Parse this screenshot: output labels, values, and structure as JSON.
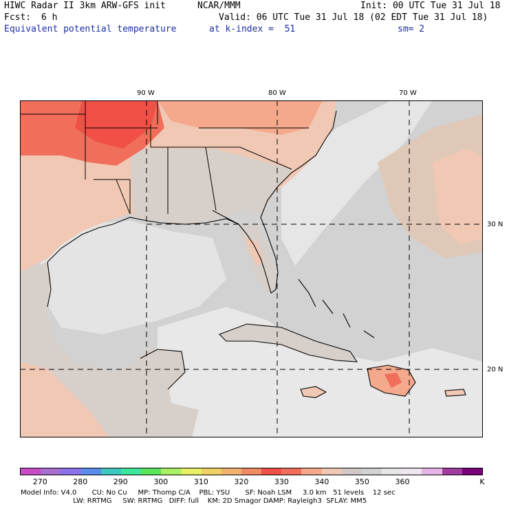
{
  "header": {
    "title": "HIWC Radar II 3km ARW-GFS init",
    "org": "NCAR/MMM",
    "init": "Init: 00 UTC Tue 31 Jul 18",
    "fcst_label": "Fcst:",
    "fcst_value": "6 h",
    "valid": "Valid: 06 UTC Tue 31 Jul 18 (02 EDT Tue 31 Jul 18)",
    "field": "Equivalent potential temperature",
    "level": "at k-index =  51",
    "smoothing": "sm= 2"
  },
  "map": {
    "lon_labels": [
      "90 W",
      "80 W",
      "70 W"
    ],
    "lat_labels": [
      "30 N",
      "20 N"
    ]
  },
  "colorbar": {
    "colors": [
      "#c84ec8",
      "#a86ed0",
      "#8c72e6",
      "#5a8ee8",
      "#3cc8c0",
      "#3ce69c",
      "#5ae65a",
      "#a8f064",
      "#e6f064",
      "#f0d264",
      "#f0b46e",
      "#f08c64",
      "#f05046",
      "#f06e5a",
      "#f4a88c",
      "#f0c8b4",
      "#d2c8c8",
      "#d2d2d2",
      "#e6e6e6",
      "#f0e6f0",
      "#e6b4e6",
      "#a03ca0",
      "#780078"
    ],
    "labels": [
      "270",
      "280",
      "290",
      "300",
      "310",
      "320",
      "330",
      "340",
      "350",
      "360"
    ],
    "unit": "K"
  },
  "model_info": {
    "line1": "Model Info: V4.0       CU: No Cu     MP: Thomp C/A    PBL: YSU       SF: Noah LSM     3.0 km   51 levels    12 sec",
    "line2": "                        LW: RRTMG     SW: RRTMG   DIFF: full    KM: 2D Smagor DAMP: Rayleigh3  SFLAY: MM5"
  }
}
